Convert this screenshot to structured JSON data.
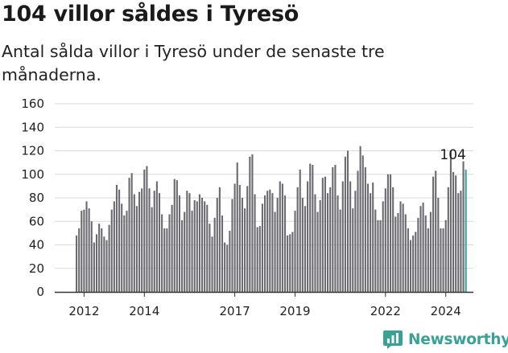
{
  "title": "104 villor såldes i Tyresö",
  "subtitle": "Antal sålda villor i Tyresö under de senaste tre månaderna.",
  "brand": {
    "name": "Newsworthy",
    "icon": "newsworthy-logo-icon",
    "color": "#3aa197"
  },
  "chart_data": {
    "type": "bar",
    "grid": true,
    "ylim": [
      0,
      160
    ],
    "yticks": [
      0,
      20,
      40,
      60,
      80,
      100,
      120,
      140,
      160
    ],
    "xtick_labels": [
      "2012",
      "2014",
      "2017",
      "2019",
      "2022",
      "2024"
    ],
    "xtick_index": [
      3,
      27,
      63,
      87,
      123,
      147
    ],
    "bar_color": "#6b6a6f",
    "highlight_color": "#3aa197",
    "highlight_label": "104",
    "values": [
      48,
      54,
      69,
      70,
      77,
      71,
      60,
      42,
      49,
      58,
      54,
      47,
      44,
      57,
      70,
      77,
      91,
      87,
      75,
      65,
      69,
      97,
      101,
      83,
      73,
      85,
      88,
      104,
      107,
      88,
      72,
      86,
      94,
      84,
      66,
      54,
      54,
      66,
      74,
      96,
      95,
      82,
      61,
      68,
      86,
      84,
      69,
      78,
      77,
      83,
      80,
      77,
      74,
      58,
      47,
      63,
      80,
      89,
      65,
      42,
      40,
      52,
      79,
      92,
      110,
      91,
      80,
      71,
      90,
      115,
      117,
      83,
      55,
      56,
      75,
      82,
      86,
      87,
      84,
      68,
      80,
      94,
      92,
      82,
      48,
      49,
      51,
      69,
      89,
      104,
      80,
      73,
      94,
      109,
      108,
      83,
      68,
      78,
      97,
      98,
      84,
      89,
      106,
      108,
      82,
      70,
      94,
      115,
      120,
      94,
      71,
      86,
      103,
      124,
      116,
      106,
      92,
      84,
      93,
      70,
      61,
      61,
      77,
      88,
      100,
      100,
      89,
      64,
      67,
      77,
      75,
      66,
      54,
      44,
      48,
      51,
      63,
      73,
      76,
      65,
      54,
      68,
      98,
      103,
      80,
      54,
      54,
      61,
      89,
      120,
      102,
      99,
      84,
      86,
      111,
      104
    ]
  }
}
